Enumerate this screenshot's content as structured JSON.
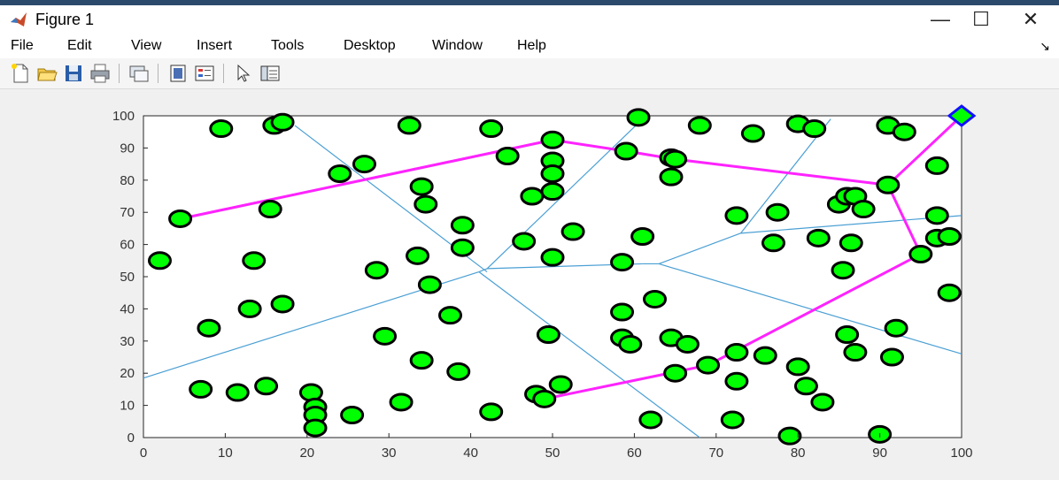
{
  "window": {
    "title": "Figure 1",
    "minimize_glyph": "—",
    "maximize_glyph": "☐",
    "close_glyph": "✕",
    "app_icon": "matlab-icon"
  },
  "menu": {
    "items": [
      "File",
      "Edit",
      "View",
      "Insert",
      "Tools",
      "Desktop",
      "Window",
      "Help"
    ],
    "overflow_glyph": "↘"
  },
  "toolbar": {
    "buttons": [
      "new-figure-icon",
      "open-file-icon",
      "save-icon",
      "print-icon",
      "link-plot-icon",
      "colorbar-icon",
      "legend-icon",
      "pointer-icon",
      "property-editor-icon"
    ]
  },
  "colors": {
    "node_fill": "#00ff00",
    "node_edge": "#000000",
    "path": "#ff22ff",
    "voronoi": "#4a9fd4",
    "goal_fill": "#00ff00",
    "goal_edge": "#1010ff"
  },
  "chart_data": {
    "type": "scatter",
    "title": "",
    "xlabel": "",
    "ylabel": "",
    "xlim": [
      0,
      100
    ],
    "ylim": [
      0,
      100
    ],
    "xticks": [
      0,
      10,
      20,
      30,
      40,
      50,
      60,
      70,
      80,
      90,
      100
    ],
    "yticks": [
      0,
      10,
      20,
      30,
      40,
      50,
      60,
      70,
      80,
      90,
      100
    ],
    "grid": false,
    "series": [
      {
        "marker": "circle",
        "points": [
          [
            4.5,
            68
          ],
          [
            2,
            55
          ],
          [
            7,
            15
          ],
          [
            8,
            34
          ],
          [
            9.5,
            96
          ],
          [
            11.5,
            14
          ],
          [
            13.5,
            55
          ],
          [
            13,
            40
          ],
          [
            15.5,
            71
          ],
          [
            15,
            16
          ],
          [
            16,
            97
          ],
          [
            17,
            98
          ],
          [
            17,
            41.5
          ],
          [
            20.5,
            14
          ],
          [
            21,
            9.5
          ],
          [
            21,
            7
          ],
          [
            21,
            3
          ],
          [
            24,
            82
          ],
          [
            25.5,
            7
          ],
          [
            27,
            85
          ],
          [
            28.5,
            52
          ],
          [
            29.5,
            31.5
          ],
          [
            31.5,
            11
          ],
          [
            32.5,
            97
          ],
          [
            33.5,
            56.5
          ],
          [
            34,
            78
          ],
          [
            34.5,
            72.5
          ],
          [
            34,
            24
          ],
          [
            35,
            47.5
          ],
          [
            37.5,
            38
          ],
          [
            38.5,
            20.5
          ],
          [
            39,
            59
          ],
          [
            39,
            66
          ],
          [
            42.5,
            8
          ],
          [
            42.5,
            96
          ],
          [
            44.5,
            87.5
          ],
          [
            46.5,
            61
          ],
          [
            47.5,
            75
          ],
          [
            48,
            13.5
          ],
          [
            49,
            12
          ],
          [
            49.5,
            32
          ],
          [
            50,
            92.5
          ],
          [
            50,
            86
          ],
          [
            50,
            82
          ],
          [
            50,
            76.5
          ],
          [
            50,
            56
          ],
          [
            51,
            16.5
          ],
          [
            52.5,
            64
          ],
          [
            58.5,
            54.5
          ],
          [
            59,
            89
          ],
          [
            58.5,
            39
          ],
          [
            58.5,
            31
          ],
          [
            59.5,
            29
          ],
          [
            60.5,
            99.5
          ],
          [
            61,
            62.5
          ],
          [
            62,
            5.5
          ],
          [
            62.5,
            43
          ],
          [
            64.5,
            81
          ],
          [
            64.5,
            87
          ],
          [
            65,
            86.5
          ],
          [
            64.5,
            31
          ],
          [
            65,
            20
          ],
          [
            66.5,
            29
          ],
          [
            68,
            97
          ],
          [
            69,
            22.5
          ],
          [
            72,
            5.5
          ],
          [
            72.5,
            69
          ],
          [
            72.5,
            26.5
          ],
          [
            72.5,
            17.5
          ],
          [
            74.5,
            94.5
          ],
          [
            76,
            25.5
          ],
          [
            77,
            60.5
          ],
          [
            77.5,
            70
          ],
          [
            79,
            0.5
          ],
          [
            80,
            22
          ],
          [
            80,
            97.5
          ],
          [
            81,
            16
          ],
          [
            82,
            96
          ],
          [
            82.5,
            62
          ],
          [
            83,
            11
          ],
          [
            85,
            72.5
          ],
          [
            85.5,
            52
          ],
          [
            86,
            32
          ],
          [
            86,
            75
          ],
          [
            86.5,
            60.5
          ],
          [
            87,
            75
          ],
          [
            87,
            26.5
          ],
          [
            88,
            71
          ],
          [
            90,
            1
          ],
          [
            91,
            97
          ],
          [
            91,
            78.5
          ],
          [
            91.5,
            25
          ],
          [
            92,
            34
          ],
          [
            93,
            95
          ],
          [
            95,
            57
          ],
          [
            97,
            84.5
          ],
          [
            97,
            69
          ],
          [
            97,
            62
          ],
          [
            98.5,
            62.5
          ],
          [
            98.5,
            45
          ]
        ]
      },
      {
        "name": "path",
        "marker": "line",
        "x": [
          4.5,
          50,
          59,
          65,
          91,
          95,
          69,
          49,
          100,
          91
        ],
        "y": [
          68,
          92.5,
          89,
          86.5,
          78.5,
          57,
          22.5,
          12,
          100,
          78.5
        ],
        "segments": [
          [
            [
              4.5,
              68
            ],
            [
              50,
              92.5
            ],
            [
              59,
              89
            ],
            [
              65,
              86.5
            ],
            [
              91,
              78.5
            ],
            [
              95,
              57
            ],
            [
              69,
              22.5
            ],
            [
              49,
              12
            ]
          ],
          [
            [
              91,
              78.5
            ],
            [
              100,
              100
            ]
          ]
        ]
      },
      {
        "name": "voronoi",
        "marker": "line",
        "segments": [
          [
            [
              18.5,
              97
            ],
            [
              42,
              51.5
            ]
          ],
          [
            [
              0,
              18.5
            ],
            [
              41,
              51.5
            ]
          ],
          [
            [
              41,
              51.5
            ],
            [
              42,
              52.5
            ]
          ],
          [
            [
              42,
              52.5
            ],
            [
              61,
              54
            ]
          ],
          [
            [
              61,
              54
            ],
            [
              63,
              54
            ]
          ],
          [
            [
              42,
              52.5
            ],
            [
              61,
              99
            ]
          ],
          [
            [
              41,
              51.5
            ],
            [
              68,
              0
            ]
          ],
          [
            [
              63,
              54
            ],
            [
              73,
              63.5
            ]
          ],
          [
            [
              73,
              63.5
            ],
            [
              84,
              99
            ]
          ],
          [
            [
              73,
              63.5
            ],
            [
              100,
              69
            ]
          ],
          [
            [
              63,
              54
            ],
            [
              100,
              26
            ]
          ]
        ]
      }
    ],
    "goal": {
      "marker": "diamond",
      "x": 100,
      "y": 100
    }
  }
}
